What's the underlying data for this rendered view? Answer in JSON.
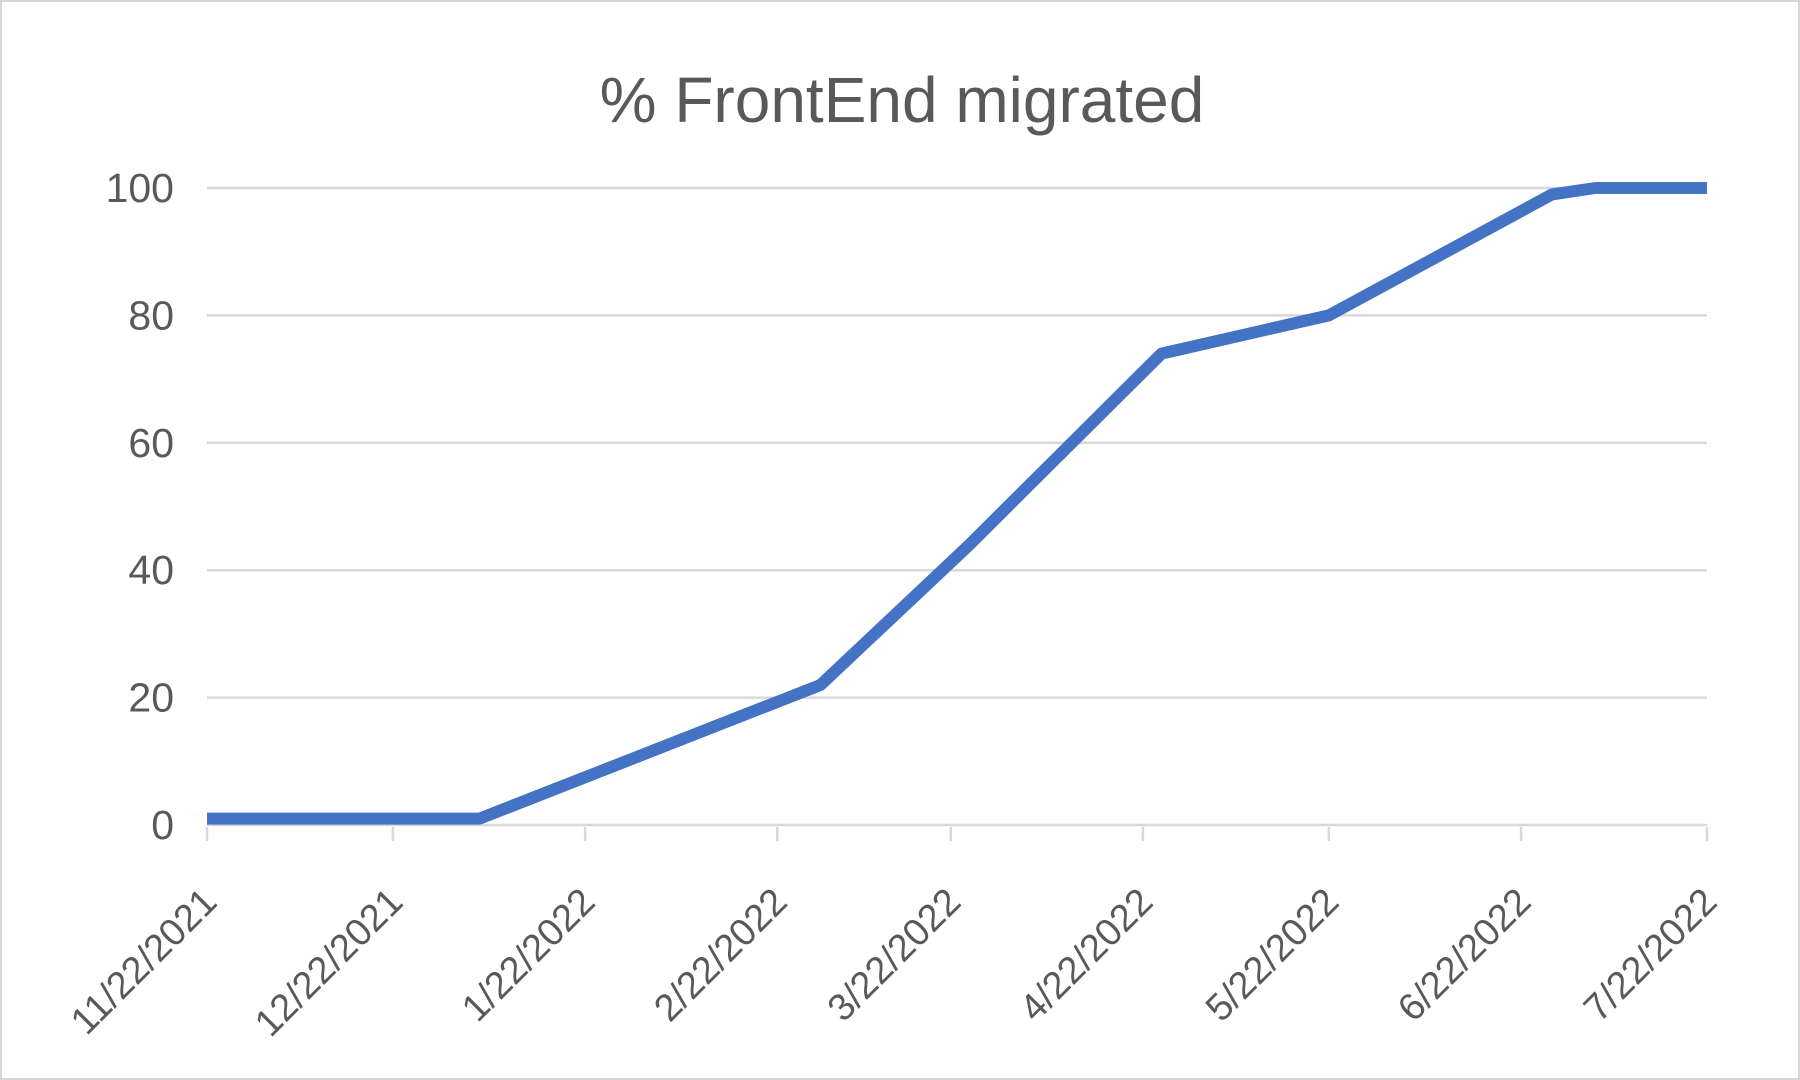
{
  "window": {
    "background": "#ffffff",
    "border_color": "#d6d6d6"
  },
  "chart_data": {
    "type": "line",
    "title": "% FrontEnd migrated",
    "series": [
      {
        "name": "% FrontEnd migrated",
        "x": [
          "11/22/2021",
          "1/5/2022",
          "3/1/2022",
          "3/25/2022",
          "4/25/2022",
          "5/22/2022",
          "6/27/2022",
          "7/4/2022",
          "7/22/2022"
        ],
        "values": [
          1,
          1,
          22,
          44,
          74,
          80,
          99,
          100,
          100
        ]
      }
    ],
    "xlabel": "",
    "ylabel": "",
    "x_axis": {
      "type": "date",
      "start": "11/22/2021",
      "end": "7/22/2022",
      "tick_labels": [
        "11/22/2021",
        "12/22/2021",
        "1/22/2022",
        "2/22/2022",
        "3/22/2022",
        "4/22/2022",
        "5/22/2022",
        "6/22/2022",
        "7/22/2022"
      ],
      "tick_label_rotation_deg": -45
    },
    "y_axis": {
      "min": 0,
      "max": 100,
      "tick_step": 20,
      "tick_labels": [
        "0",
        "20",
        "40",
        "60",
        "80",
        "100"
      ]
    },
    "grid": "horizontal",
    "legend": "none",
    "colors": {
      "line": "#4472C4",
      "gridline": "#D9D9D9",
      "axis_line": "#D9D9D9",
      "tick_mark": "#D9D9D9",
      "text": "#595959"
    }
  }
}
